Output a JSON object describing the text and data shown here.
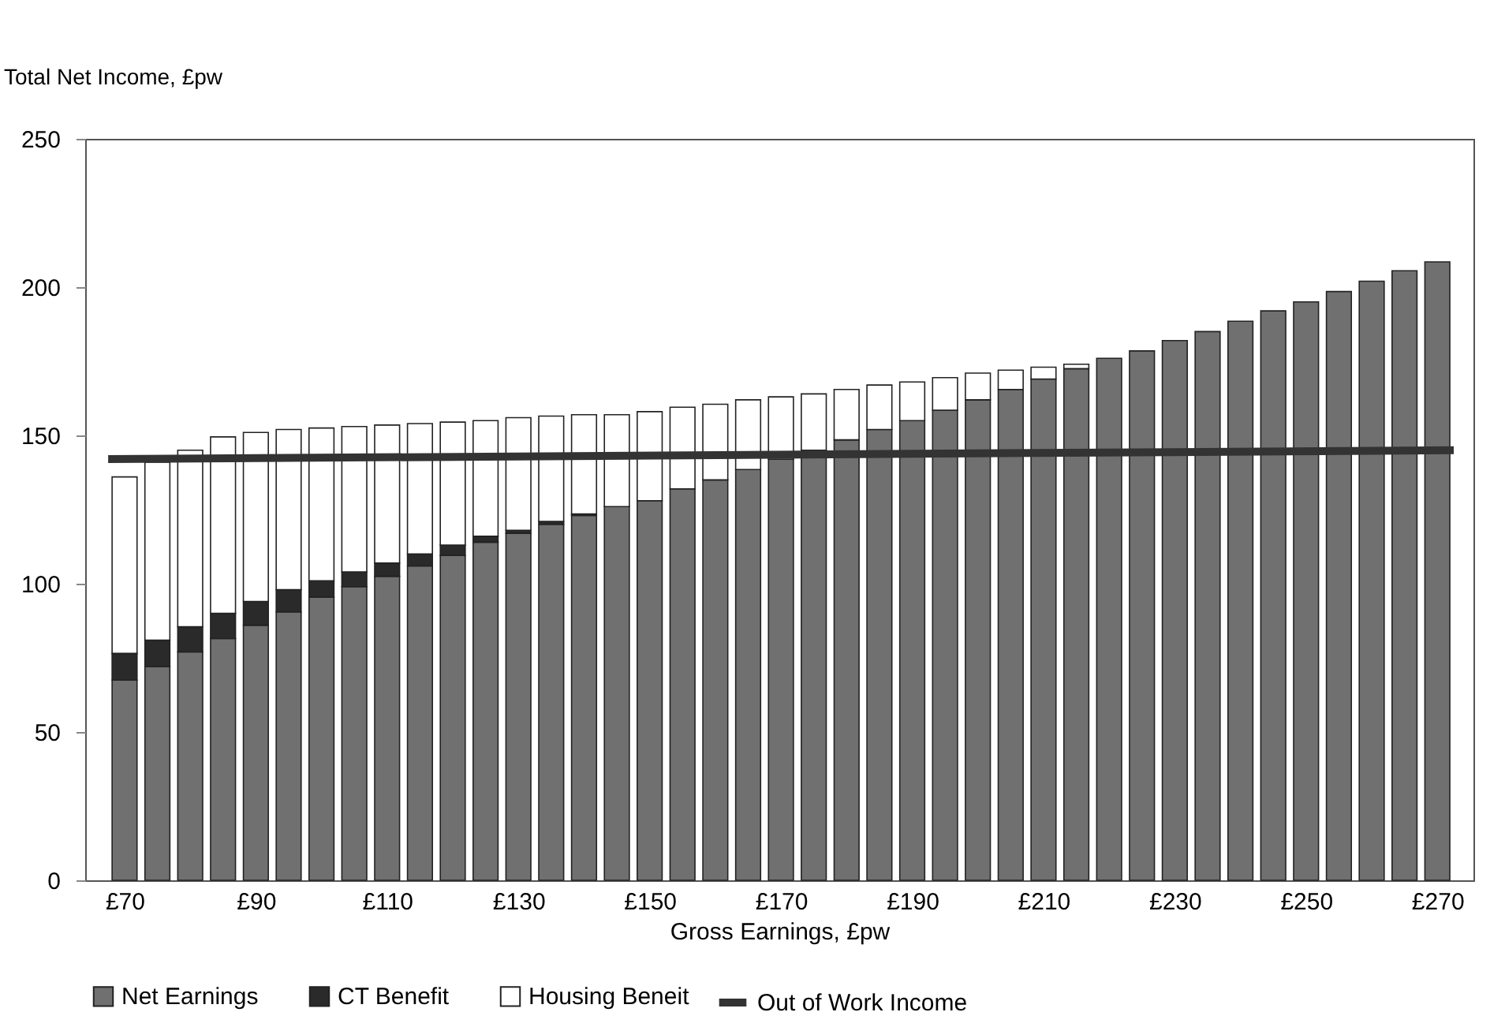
{
  "chart_data": {
    "type": "bar",
    "stacked": true,
    "ylabel": "Total Net Income, £pw",
    "xlabel": "Gross Earnings, £pw",
    "x": [
      70,
      75,
      80,
      85,
      90,
      95,
      100,
      105,
      110,
      115,
      120,
      125,
      130,
      135,
      140,
      145,
      150,
      155,
      160,
      165,
      170,
      175,
      180,
      185,
      190,
      195,
      200,
      205,
      210,
      215,
      220,
      225,
      230,
      235,
      240,
      245,
      250,
      255,
      260,
      265,
      270
    ],
    "xlim": [
      64,
      275.5
    ],
    "xticks": [
      {
        "value": 70,
        "label": "£70"
      },
      {
        "value": 90,
        "label": "£90"
      },
      {
        "value": 110,
        "label": "£110"
      },
      {
        "value": 130,
        "label": "£130"
      },
      {
        "value": 150,
        "label": "£150"
      },
      {
        "value": 170,
        "label": "£170"
      },
      {
        "value": 190,
        "label": "£190"
      },
      {
        "value": 210,
        "label": "£210"
      },
      {
        "value": 230,
        "label": "£230"
      },
      {
        "value": 250,
        "label": "£250"
      },
      {
        "value": 270,
        "label": "£270"
      }
    ],
    "ylim": [
      0,
      250
    ],
    "yticks": [
      0,
      50,
      100,
      150,
      200,
      250
    ],
    "grid": false,
    "legend": "bottom",
    "series": [
      {
        "name": "Net Earnings",
        "color": "#707070",
        "values": [
          67.5,
          72,
          77,
          81.5,
          86,
          90.5,
          95.5,
          99,
          102.5,
          106,
          109.5,
          114,
          117,
          120,
          123,
          126,
          128,
          132,
          135,
          138.5,
          142,
          145,
          148.5,
          152,
          155,
          158.5,
          162,
          165.5,
          169,
          172.5,
          176,
          178.5,
          182,
          185,
          188.5,
          192,
          195,
          198.5,
          202,
          205.5,
          208.5
        ]
      },
      {
        "name": "CT Benefit",
        "color": "#2a2a2a",
        "values": [
          9,
          9,
          8.5,
          8.5,
          8,
          7.5,
          5.5,
          5,
          4.5,
          4,
          3.5,
          2,
          1,
          1,
          0.5,
          null,
          null,
          null,
          null,
          null,
          null,
          null,
          null,
          null,
          null,
          null,
          null,
          null,
          null,
          null,
          null,
          null,
          null,
          null,
          null,
          null,
          null,
          null,
          null,
          null,
          null
        ]
      },
      {
        "name": "Housing Beneit",
        "color": "#ffffff",
        "values": [
          59.5,
          60,
          59.5,
          59.5,
          57,
          54,
          51.5,
          49,
          46.5,
          44,
          41.5,
          39,
          38,
          35.5,
          33.5,
          31,
          30,
          27.5,
          25.5,
          23.5,
          21,
          19,
          17,
          15,
          13,
          11,
          9,
          6.5,
          4,
          1.5,
          null,
          null,
          null,
          null,
          null,
          null,
          null,
          null,
          null,
          null,
          null
        ]
      },
      {
        "name": "Out of Work Income",
        "type": "line",
        "color": "#333333",
        "x": [
          67.5,
          272.5
        ],
        "values": [
          142,
          145
        ]
      }
    ]
  }
}
